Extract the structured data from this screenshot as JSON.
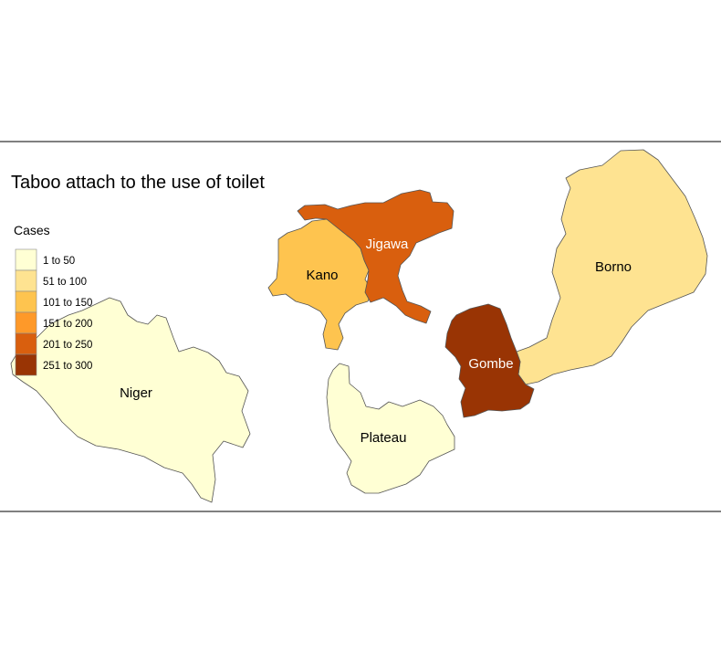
{
  "map": {
    "title": "Taboo attach to the use of toilet"
  },
  "legend": {
    "title": "Cases",
    "classes": [
      {
        "label": "1 to 50",
        "color": "#FFFFD4"
      },
      {
        "label": "51 to 100",
        "color": "#FEE391"
      },
      {
        "label": "101 to 150",
        "color": "#FEC44F"
      },
      {
        "label": "151 to 200",
        "color": "#FE9929"
      },
      {
        "label": "201 to 250",
        "color": "#D95F0E"
      },
      {
        "label": "251 to 300",
        "color": "#993404"
      }
    ]
  },
  "regions": [
    {
      "name": "Niger",
      "class": "1 to 50",
      "label_color": "#000000"
    },
    {
      "name": "Kano",
      "class": "101 to 150",
      "label_color": "#000000"
    },
    {
      "name": "Jigawa",
      "class": "201 to 250",
      "label_color": "#FFFFFF"
    },
    {
      "name": "Plateau",
      "class": "1 to 50",
      "label_color": "#000000"
    },
    {
      "name": "Gombe",
      "class": "251 to 300",
      "label_color": "#FFFFFF"
    },
    {
      "name": "Borno",
      "class": "51 to 100",
      "label_color": "#000000"
    }
  ]
}
